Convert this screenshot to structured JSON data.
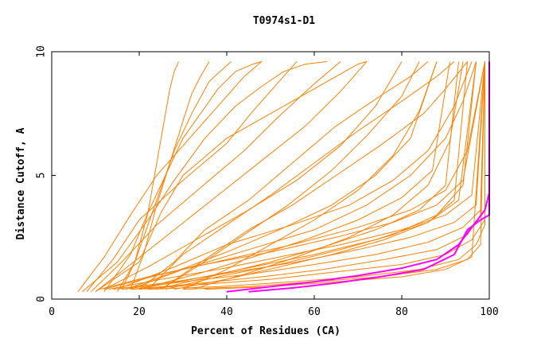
{
  "chart_data": {
    "type": "line",
    "title": "T0974s1-D1",
    "xlabel": "Percent of Residues (CA)",
    "ylabel": "Distance Cutoff, A",
    "xlim": [
      0,
      100
    ],
    "ylim": [
      0,
      10
    ],
    "x_ticks": [
      "0",
      "20",
      "40",
      "60",
      "80",
      "100"
    ],
    "y_ticks": [
      "0",
      "5",
      "10"
    ],
    "grid": false,
    "legend": "none",
    "colors": {
      "models": "#ff8000",
      "highlight": "#ff00ff",
      "axis": "#000000",
      "background": "#ffffff"
    },
    "series": [
      {
        "x": [
          10,
          20,
          25,
          30,
          40,
          50,
          55,
          60,
          65,
          70,
          72
        ],
        "y": [
          0.3,
          1.5,
          3.5,
          5.0,
          6.5,
          7.5,
          8.0,
          8.5,
          9.0,
          9.5,
          9.6
        ]
      },
      {
        "x": [
          7,
          15,
          22,
          28,
          35,
          42,
          48,
          53,
          58,
          63
        ],
        "y": [
          0.3,
          1.5,
          3.2,
          4.8,
          6.5,
          7.8,
          8.6,
          9.2,
          9.5,
          9.6
        ]
      },
      {
        "x": [
          12,
          18,
          22,
          26,
          30,
          34,
          38,
          42,
          46,
          48
        ],
        "y": [
          0.3,
          1.8,
          3.5,
          5.0,
          6.5,
          7.5,
          8.5,
          9.2,
          9.5,
          9.6
        ]
      },
      {
        "x": [
          15,
          19,
          22,
          25,
          28,
          32,
          36,
          41
        ],
        "y": [
          0.3,
          1.5,
          3.0,
          4.5,
          6.0,
          7.5,
          8.8,
          9.6
        ]
      },
      {
        "x": [
          16,
          19,
          22,
          24,
          26,
          27,
          28,
          29
        ],
        "y": [
          0.4,
          1.5,
          3.5,
          5.5,
          7.5,
          8.5,
          9.2,
          9.6
        ]
      },
      {
        "x": [
          18,
          21,
          24,
          27,
          30,
          32,
          34,
          36
        ],
        "y": [
          0.4,
          1.8,
          3.8,
          5.5,
          7.2,
          8.3,
          9.0,
          9.6
        ]
      },
      {
        "x": [
          20,
          28,
          35,
          45,
          55,
          65,
          75,
          82,
          86
        ],
        "y": [
          0.4,
          1.5,
          2.8,
          4.0,
          5.5,
          7.0,
          8.2,
          9.0,
          9.6
        ]
      },
      {
        "x": [
          22,
          30,
          40,
          50,
          60,
          70,
          80,
          88,
          92
        ],
        "y": [
          0.4,
          1.8,
          3.0,
          4.2,
          5.5,
          6.8,
          8.0,
          9.0,
          9.6
        ]
      },
      {
        "x": [
          25,
          35,
          45,
          55,
          65,
          75,
          85,
          90,
          95
        ],
        "y": [
          0.4,
          1.6,
          2.8,
          3.8,
          5.0,
          6.2,
          7.5,
          8.5,
          9.6
        ]
      },
      {
        "x": [
          18,
          30,
          45,
          60,
          72,
          82,
          90,
          94,
          97
        ],
        "y": [
          0.4,
          1.2,
          2.0,
          2.8,
          3.8,
          5.0,
          6.5,
          8.0,
          9.6
        ]
      },
      {
        "x": [
          15,
          28,
          40,
          55,
          68,
          78,
          86,
          92,
          96
        ],
        "y": [
          0.4,
          1.3,
          2.2,
          3.0,
          3.8,
          4.8,
          6.0,
          7.8,
          9.6
        ]
      },
      {
        "x": [
          12,
          25,
          40,
          55,
          70,
          82,
          90,
          95,
          99
        ],
        "y": [
          0.4,
          1.0,
          1.6,
          2.2,
          2.9,
          3.6,
          4.4,
          6.0,
          9.6
        ]
      },
      {
        "x": [
          11,
          22,
          35,
          50,
          65,
          78,
          88,
          94,
          99
        ],
        "y": [
          0.4,
          0.9,
          1.4,
          1.9,
          2.5,
          3.1,
          3.8,
          4.8,
          9.6
        ]
      },
      {
        "x": [
          13,
          25,
          38,
          52,
          66,
          80,
          90,
          96,
          99
        ],
        "y": [
          0.4,
          0.8,
          1.2,
          1.7,
          2.2,
          2.8,
          3.4,
          4.2,
          9.6
        ]
      },
      {
        "x": [
          14,
          28,
          42,
          56,
          70,
          82,
          92,
          97,
          99
        ],
        "y": [
          0.4,
          0.7,
          1.1,
          1.5,
          2.0,
          2.5,
          3.1,
          3.8,
          9.6
        ]
      },
      {
        "x": [
          16,
          30,
          45,
          60,
          74,
          86,
          94,
          98,
          99
        ],
        "y": [
          0.4,
          0.7,
          1.0,
          1.4,
          1.8,
          2.3,
          2.9,
          3.6,
          9.6
        ]
      },
      {
        "x": [
          18,
          32,
          48,
          62,
          76,
          88,
          95,
          98,
          99
        ],
        "y": [
          0.4,
          0.6,
          0.9,
          1.2,
          1.6,
          2.0,
          2.6,
          3.4,
          9.6
        ]
      },
      {
        "x": [
          20,
          35,
          50,
          65,
          80,
          90,
          96,
          99,
          99
        ],
        "y": [
          0.4,
          0.6,
          0.8,
          1.1,
          1.4,
          1.8,
          2.4,
          3.2,
          9.6
        ]
      },
      {
        "x": [
          22,
          38,
          55,
          70,
          84,
          93,
          97,
          99,
          99
        ],
        "y": [
          0.4,
          0.5,
          0.7,
          0.9,
          1.2,
          1.6,
          2.2,
          3.0,
          9.6
        ]
      },
      {
        "x": [
          30,
          45,
          60,
          75,
          88,
          95,
          98,
          99
        ],
        "y": [
          0.4,
          0.5,
          0.7,
          0.9,
          1.2,
          1.6,
          2.2,
          9.6
        ]
      },
      {
        "x": [
          35,
          50,
          65,
          80,
          90,
          96,
          99
        ],
        "y": [
          0.4,
          0.5,
          0.7,
          0.9,
          1.2,
          1.7,
          9.6
        ]
      },
      {
        "x": [
          28,
          40,
          52,
          64,
          76,
          86,
          92,
          95
        ],
        "y": [
          0.4,
          0.8,
          1.3,
          1.8,
          2.4,
          3.1,
          4.0,
          9.6
        ]
      },
      {
        "x": [
          24,
          36,
          50,
          62,
          74,
          84,
          90,
          93
        ],
        "y": [
          0.4,
          0.9,
          1.5,
          2.1,
          2.8,
          3.6,
          4.6,
          9.6
        ]
      },
      {
        "x": [
          20,
          33,
          46,
          58,
          70,
          80,
          87,
          91
        ],
        "y": [
          0.4,
          1.0,
          1.7,
          2.4,
          3.2,
          4.1,
          5.2,
          9.6
        ]
      },
      {
        "x": [
          17,
          28,
          40,
          52,
          64,
          74,
          82,
          88
        ],
        "y": [
          0.4,
          1.1,
          1.9,
          2.8,
          3.8,
          5.0,
          6.5,
          9.6
        ]
      },
      {
        "x": [
          12,
          22,
          32,
          44,
          56,
          66,
          74,
          80
        ],
        "y": [
          0.4,
          1.3,
          2.3,
          3.5,
          4.8,
          6.2,
          7.8,
          9.6
        ]
      },
      {
        "x": [
          10,
          18,
          28,
          38,
          48,
          58,
          66,
          72
        ],
        "y": [
          0.3,
          1.4,
          2.8,
          4.2,
          5.6,
          7.0,
          8.4,
          9.6
        ]
      },
      {
        "x": [
          9,
          16,
          24,
          34,
          44,
          52,
          60,
          66
        ],
        "y": [
          0.3,
          1.5,
          3.0,
          4.5,
          6.0,
          7.4,
          8.7,
          9.6
        ]
      },
      {
        "x": [
          8,
          14,
          20,
          30,
          40,
          46,
          52,
          56
        ],
        "y": [
          0.3,
          1.6,
          3.2,
          4.8,
          6.3,
          7.6,
          8.8,
          9.6
        ]
      },
      {
        "x": [
          6,
          12,
          18,
          24,
          32,
          38,
          44,
          48
        ],
        "y": [
          0.3,
          1.7,
          3.4,
          5.0,
          6.6,
          7.8,
          9.0,
          9.6
        ]
      },
      {
        "x": [
          25,
          34,
          44,
          54,
          64,
          72,
          80,
          84
        ],
        "y": [
          0.4,
          1.4,
          2.6,
          3.8,
          5.2,
          6.6,
          8.2,
          9.6
        ]
      },
      {
        "x": [
          30,
          40,
          50,
          60,
          70,
          78,
          84,
          88
        ],
        "y": [
          0.4,
          1.2,
          2.2,
          3.2,
          4.4,
          5.8,
          7.6,
          9.6
        ]
      },
      {
        "x": [
          32,
          44,
          56,
          68,
          78,
          86,
          91,
          94
        ],
        "y": [
          0.4,
          1.0,
          1.7,
          2.5,
          3.4,
          4.6,
          6.4,
          9.6
        ]
      },
      {
        "x": [
          26,
          38,
          52,
          66,
          78,
          88,
          94,
          97
        ],
        "y": [
          0.4,
          0.9,
          1.4,
          2.0,
          2.6,
          3.4,
          4.6,
          9.6
        ]
      },
      {
        "x": [
          19,
          32,
          46,
          60,
          74,
          86,
          93,
          97
        ],
        "y": [
          0.4,
          0.8,
          1.3,
          1.8,
          2.4,
          3.1,
          4.0,
          9.6
        ]
      }
    ],
    "highlight_series": [
      {
        "x": [
          40,
          50,
          60,
          70,
          80,
          88,
          93,
          96,
          99,
          100,
          100
        ],
        "y": [
          0.3,
          0.5,
          0.7,
          0.95,
          1.25,
          1.6,
          2.2,
          2.9,
          3.6,
          4.3,
          9.6
        ]
      },
      {
        "x": [
          45,
          55,
          65,
          75,
          85,
          92,
          95,
          98,
          100,
          100
        ],
        "y": [
          0.3,
          0.45,
          0.65,
          0.9,
          1.2,
          1.8,
          2.8,
          3.2,
          3.4,
          9.6
        ]
      }
    ]
  }
}
